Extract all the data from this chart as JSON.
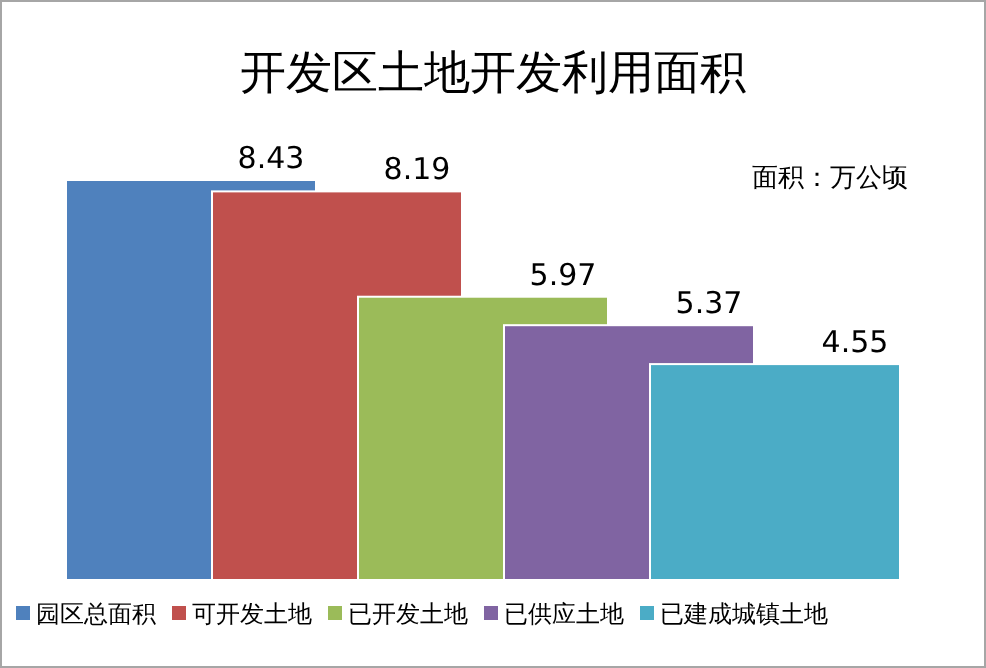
{
  "chart_data": {
    "type": "bar",
    "title": "开发区土地开发利用面积",
    "annotations": [
      "面积：万公顷"
    ],
    "categories": [
      null
    ],
    "series": [
      {
        "name": "园区总面积",
        "color": "#4f81bd",
        "values": [
          8.43
        ]
      },
      {
        "name": "可开发土地",
        "color": "#c0504d",
        "values": [
          8.19
        ]
      },
      {
        "name": "已开发土地",
        "color": "#9bbb59",
        "values": [
          5.97
        ]
      },
      {
        "name": "已供应土地",
        "color": "#8064a2",
        "values": [
          5.37
        ]
      },
      {
        "name": "已建成城镇土地",
        "color": "#4bacc6",
        "values": [
          4.55
        ]
      }
    ],
    "data_labels": true,
    "legend": "bottom"
  }
}
